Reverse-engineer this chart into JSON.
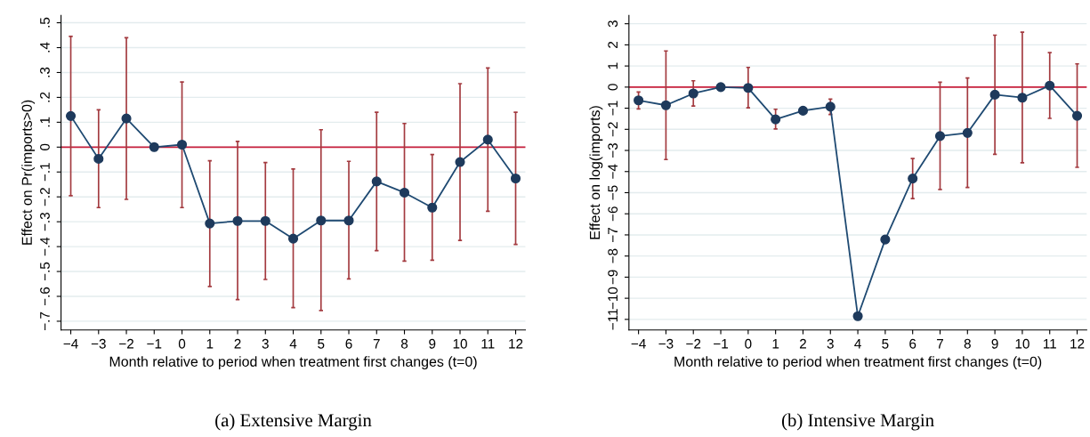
{
  "chart_data": [
    {
      "type": "line",
      "title": "(a) Extensive Margin",
      "xlabel": "Month relative to period when treatment first changes (t=0)",
      "ylabel": "Effect on Pr(imports>0)",
      "categories": [
        "−4",
        "−3",
        "−2",
        "−1",
        "0",
        "1",
        "2",
        "3",
        "4",
        "5",
        "6",
        "7",
        "8",
        "9",
        "10",
        "11",
        "12"
      ],
      "series": [
        {
          "color": "#1f4a72",
          "values": [
            0.125,
            -0.047,
            0.115,
            0,
            0.01,
            -0.307,
            -0.297,
            -0.297,
            -0.368,
            -0.295,
            -0.295,
            -0.138,
            -0.183,
            -0.243,
            -0.06,
            0.03,
            -0.126
          ],
          "errors": [
            [
              -0.195,
              0.445
            ],
            [
              -0.243,
              0.15
            ],
            [
              -0.21,
              0.44
            ],
            null,
            [
              -0.243,
              0.262
            ],
            [
              -0.56,
              -0.055
            ],
            [
              -0.613,
              0.023
            ],
            [
              -0.532,
              -0.062
            ],
            [
              -0.645,
              -0.088
            ],
            [
              -0.657,
              0.07
            ],
            [
              -0.53,
              -0.057
            ],
            [
              -0.416,
              0.14
            ],
            [
              -0.458,
              0.095
            ],
            [
              -0.455,
              -0.03
            ],
            [
              -0.375,
              0.255
            ],
            [
              -0.258,
              0.318
            ],
            [
              -0.391,
              0.14
            ]
          ]
        }
      ],
      "ylim": [
        -0.735,
        0.53
      ],
      "yticks": [
        {
          "value": -0.7,
          "label": "−.7"
        },
        {
          "value": -0.6,
          "label": "−.6"
        },
        {
          "value": -0.5,
          "label": "−.5"
        },
        {
          "value": -0.4,
          "label": "−.4"
        },
        {
          "value": -0.3,
          "label": "−.3"
        },
        {
          "value": -0.2,
          "label": "−.2"
        },
        {
          "value": -0.1,
          "label": "−.1"
        },
        0,
        {
          "value": 0.1,
          "label": ".1"
        },
        {
          "value": 0.2,
          "label": ".2"
        },
        {
          "value": 0.3,
          "label": ".3"
        },
        {
          "value": 0.4,
          "label": ".4"
        },
        {
          "value": 0.5,
          "label": ".5"
        }
      ],
      "ref_lines": [
        {
          "axis": "y",
          "value": 0,
          "color": "#c8203c"
        }
      ],
      "grid": "y",
      "marker": "circle",
      "line_style": "solid"
    },
    {
      "type": "line",
      "title": "(b) Intensive Margin",
      "xlabel": "Month relative to period when treatment first changes (t=0)",
      "ylabel": "Effect on log(imports)",
      "categories": [
        "−4",
        "−3",
        "−2",
        "−1",
        "0",
        "1",
        "2",
        "3",
        "4",
        "5",
        "6",
        "7",
        "8",
        "9",
        "10",
        "11",
        "12"
      ],
      "series": [
        {
          "color": "#1f4a72",
          "values": [
            -0.63,
            -0.86,
            -0.3,
            0,
            -0.04,
            -1.53,
            -1.12,
            -0.93,
            -10.85,
            -7.22,
            -4.33,
            -2.32,
            -2.17,
            -0.36,
            -0.5,
            0.07,
            -1.36
          ],
          "errors": [
            [
              -1.03,
              -0.23
            ],
            [
              -3.43,
              1.71
            ],
            [
              -0.9,
              0.3
            ],
            null,
            [
              -0.98,
              0.93
            ],
            [
              -1.98,
              -1.05
            ],
            [
              -1.17,
              -1.07
            ],
            [
              -1.3,
              -0.57
            ],
            [
              -10.9,
              -10.8
            ],
            [
              -7.28,
              -7.16
            ],
            [
              -5.28,
              -3.38
            ],
            [
              -4.85,
              0.23
            ],
            [
              -4.75,
              0.43
            ],
            [
              -3.18,
              2.46
            ],
            [
              -3.58,
              2.6
            ],
            [
              -1.48,
              1.63
            ],
            [
              -3.8,
              1.1
            ]
          ]
        }
      ],
      "ylim": [
        -11.5,
        3.4
      ],
      "yticks": [
        {
          "value": -11,
          "label": "−11"
        },
        {
          "value": -10,
          "label": "−10"
        },
        {
          "value": -9,
          "label": "−9"
        },
        {
          "value": -8,
          "label": "−8"
        },
        {
          "value": -7,
          "label": "−7"
        },
        {
          "value": -6,
          "label": "−6"
        },
        {
          "value": -5,
          "label": "−5"
        },
        {
          "value": -4,
          "label": "−4"
        },
        {
          "value": -3,
          "label": "−3"
        },
        {
          "value": -2,
          "label": "−2"
        },
        {
          "value": -1,
          "label": "−1"
        },
        0,
        1,
        2,
        3
      ],
      "ref_lines": [
        {
          "axis": "y",
          "value": 0,
          "color": "#c8203c"
        }
      ],
      "grid": "y",
      "marker": "circle",
      "line_style": "solid"
    }
  ]
}
